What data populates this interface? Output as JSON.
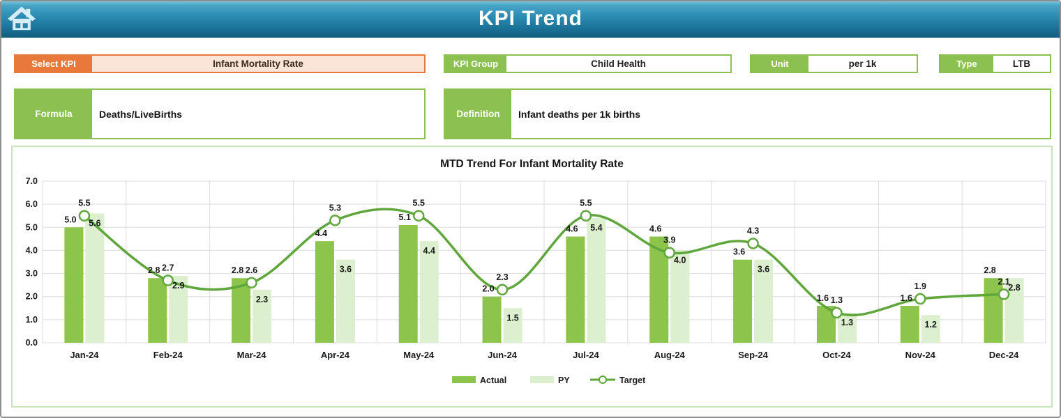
{
  "header": {
    "title": "KPI Trend",
    "home_icon": "home-icon"
  },
  "filters": {
    "select_kpi": {
      "label": "Select KPI",
      "value": "Infant Mortality Rate"
    },
    "kpi_group": {
      "label": "KPI Group",
      "value": "Child Health"
    },
    "unit": {
      "label": "Unit",
      "value": "per 1k"
    },
    "type": {
      "label": "Type",
      "value": "LTB"
    }
  },
  "details": {
    "formula": {
      "label": "Formula",
      "value": "Deaths/LiveBirths"
    },
    "definition": {
      "label": "Definition",
      "value": "Infant deaths per 1k births"
    }
  },
  "chart_data": {
    "type": "bar",
    "title": "MTD Trend For Infant Mortality Rate",
    "categories": [
      "Jan-24",
      "Feb-24",
      "Mar-24",
      "Apr-24",
      "May-24",
      "Jun-24",
      "Jul-24",
      "Aug-24",
      "Sep-24",
      "Oct-24",
      "Nov-24",
      "Dec-24"
    ],
    "series": [
      {
        "name": "Actual",
        "type": "bar",
        "color": "#8DC44C",
        "values": [
          5.0,
          2.8,
          2.8,
          4.4,
          5.1,
          2.0,
          4.6,
          4.6,
          3.6,
          1.6,
          1.6,
          2.8
        ]
      },
      {
        "name": "PY",
        "type": "bar",
        "color": "#DCEFCE",
        "values": [
          5.6,
          2.9,
          2.3,
          3.6,
          4.4,
          1.5,
          5.4,
          4.0,
          3.6,
          1.3,
          1.2,
          2.8
        ]
      },
      {
        "name": "Target",
        "type": "line",
        "color": "#5FA73C",
        "values": [
          5.5,
          2.7,
          2.6,
          5.3,
          5.5,
          2.3,
          5.5,
          3.9,
          4.3,
          1.3,
          1.9,
          2.1
        ]
      }
    ],
    "xlabel": "",
    "ylabel": "",
    "ylim": [
      0,
      7
    ],
    "ytick_step": 1.0,
    "grid": true,
    "legend_position": "bottom",
    "colors": {
      "gridline": "#DCDCDC",
      "axis_text": "#1a1a1a",
      "data_label": "#1a1a1a",
      "marker_fill": "#ffffff"
    }
  }
}
